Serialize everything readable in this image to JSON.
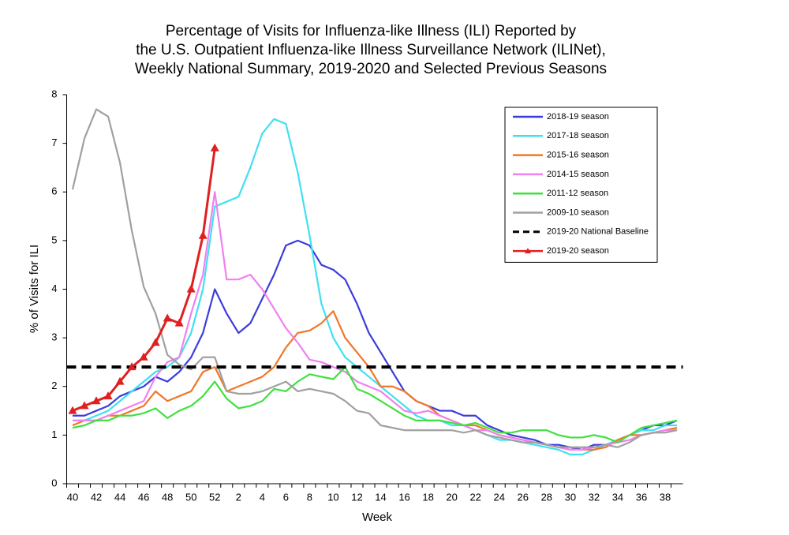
{
  "chart_data": {
    "type": "line",
    "title": [
      "Percentage of Visits for Influenza-like Illness (ILI) Reported by",
      "the U.S. Outpatient Influenza-like Illness Surveillance Network (ILINet),",
      "Weekly National Summary, 2019-2020 and Selected Previous Seasons"
    ],
    "x_label": "Week",
    "y_label": "% of Visits for ILI",
    "categories": [
      40,
      null,
      42,
      null,
      44,
      null,
      46,
      null,
      48,
      null,
      50,
      null,
      52,
      null,
      2,
      null,
      4,
      null,
      6,
      null,
      8,
      null,
      10,
      null,
      12,
      null,
      14,
      null,
      16,
      null,
      18,
      null,
      20,
      null,
      22,
      null,
      24,
      null,
      26,
      null,
      28,
      null,
      30,
      null,
      32,
      null,
      34,
      null,
      36,
      null,
      38,
      null
    ],
    "ylim": [
      0,
      8
    ],
    "yticks": [
      0,
      1,
      2,
      3,
      4,
      5,
      6,
      7,
      8
    ],
    "grid": false,
    "series": [
      {
        "name": "2018-19 season",
        "color": "#3c3cdc",
        "values": [
          1.4,
          1.4,
          1.5,
          1.6,
          1.8,
          1.9,
          2.0,
          2.2,
          2.1,
          2.3,
          2.6,
          3.1,
          4.0,
          3.5,
          3.1,
          3.3,
          3.8,
          4.3,
          4.9,
          5.0,
          4.9,
          4.5,
          4.4,
          4.2,
          3.7,
          3.1,
          2.7,
          2.3,
          1.9,
          1.7,
          1.6,
          1.5,
          1.5,
          1.4,
          1.4,
          1.2,
          1.1,
          1.0,
          0.95,
          0.9,
          0.8,
          0.8,
          0.75,
          0.7,
          0.8,
          0.8,
          0.9,
          1.0,
          1.1,
          1.2,
          1.2,
          1.3
        ]
      },
      {
        "name": "2017-18 season",
        "color": "#40e0f0",
        "values": [
          1.3,
          1.3,
          1.4,
          1.5,
          1.7,
          1.9,
          2.1,
          2.3,
          2.4,
          2.6,
          3.1,
          4.0,
          5.7,
          5.8,
          5.9,
          6.5,
          7.2,
          7.5,
          7.4,
          6.4,
          5.1,
          3.7,
          3.0,
          2.6,
          2.4,
          2.2,
          2.0,
          1.8,
          1.6,
          1.4,
          1.3,
          1.3,
          1.2,
          1.2,
          1.1,
          1.0,
          0.9,
          0.9,
          0.85,
          0.8,
          0.75,
          0.7,
          0.6,
          0.6,
          0.7,
          0.8,
          0.9,
          1.0,
          1.1,
          1.1,
          1.2,
          1.2
        ]
      },
      {
        "name": "2015-16 season",
        "color": "#f07828",
        "values": [
          1.2,
          1.3,
          1.3,
          1.4,
          1.4,
          1.5,
          1.6,
          1.9,
          1.7,
          1.8,
          1.9,
          2.3,
          2.4,
          1.9,
          2.0,
          2.1,
          2.2,
          2.4,
          2.8,
          3.1,
          3.15,
          3.3,
          3.55,
          3.0,
          2.7,
          2.4,
          2.0,
          2.0,
          1.9,
          1.7,
          1.6,
          1.4,
          1.3,
          1.2,
          1.2,
          1.1,
          1.0,
          0.95,
          0.9,
          0.85,
          0.8,
          0.75,
          0.7,
          0.7,
          0.7,
          0.75,
          0.9,
          1.0,
          1.0,
          1.05,
          1.1,
          1.15
        ]
      },
      {
        "name": "2014-15 season",
        "color": "#f080f0",
        "values": [
          1.3,
          1.3,
          1.3,
          1.4,
          1.5,
          1.6,
          1.7,
          2.2,
          2.5,
          2.6,
          3.5,
          4.3,
          6.0,
          4.2,
          4.2,
          4.3,
          4.0,
          3.6,
          3.2,
          2.9,
          2.55,
          2.5,
          2.4,
          2.3,
          2.1,
          2.0,
          1.9,
          1.7,
          1.5,
          1.45,
          1.5,
          1.4,
          1.3,
          1.2,
          1.1,
          1.1,
          1.0,
          0.95,
          0.9,
          0.85,
          0.8,
          0.75,
          0.7,
          0.7,
          0.75,
          0.8,
          0.85,
          0.9,
          1.0,
          1.05,
          1.1,
          1.1
        ]
      },
      {
        "name": "2011-12 season",
        "color": "#40e040",
        "values": [
          1.15,
          1.2,
          1.3,
          1.3,
          1.4,
          1.4,
          1.45,
          1.55,
          1.35,
          1.5,
          1.6,
          1.8,
          2.1,
          1.75,
          1.55,
          1.6,
          1.7,
          1.95,
          1.9,
          2.1,
          2.25,
          2.2,
          2.15,
          2.4,
          1.95,
          1.85,
          1.7,
          1.55,
          1.4,
          1.3,
          1.3,
          1.3,
          1.25,
          1.2,
          1.25,
          1.15,
          1.05,
          1.05,
          1.1,
          1.1,
          1.1,
          1.0,
          0.95,
          0.95,
          1.0,
          0.95,
          0.85,
          1.0,
          1.15,
          1.2,
          1.25,
          1.3
        ]
      },
      {
        "name": "2009-10 season",
        "color": "#a0a0a0",
        "values": [
          6.05,
          7.1,
          7.7,
          7.55,
          6.6,
          5.2,
          4.05,
          3.5,
          2.65,
          2.45,
          2.35,
          2.6,
          2.6,
          1.9,
          1.85,
          1.85,
          1.9,
          2.0,
          2.1,
          1.9,
          1.95,
          1.9,
          1.85,
          1.7,
          1.5,
          1.45,
          1.2,
          1.15,
          1.1,
          1.1,
          1.1,
          1.1,
          1.1,
          1.05,
          1.1,
          1.0,
          0.95,
          0.9,
          0.85,
          0.85,
          0.8,
          0.75,
          0.75,
          0.75,
          0.75,
          0.8,
          0.75,
          0.85,
          1.0,
          1.05,
          1.05,
          1.1
        ]
      },
      {
        "name": "2019-20 National Baseline",
        "color": "#000000",
        "dashed": true,
        "value": 2.4
      },
      {
        "name": "2019-20 season",
        "color": "#e02020",
        "marker": "triangle",
        "values": [
          1.5,
          1.6,
          1.7,
          1.8,
          2.1,
          2.4,
          2.6,
          2.9,
          3.4,
          3.3,
          4.0,
          5.1,
          6.9,
          null,
          null,
          null,
          null,
          null,
          null,
          null,
          null,
          null,
          null,
          null,
          null,
          null,
          null,
          null,
          null,
          null,
          null,
          null,
          null,
          null,
          null,
          null,
          null,
          null,
          null,
          null,
          null,
          null,
          null,
          null,
          null,
          null,
          null,
          null,
          null,
          null,
          null,
          null
        ]
      }
    ]
  }
}
